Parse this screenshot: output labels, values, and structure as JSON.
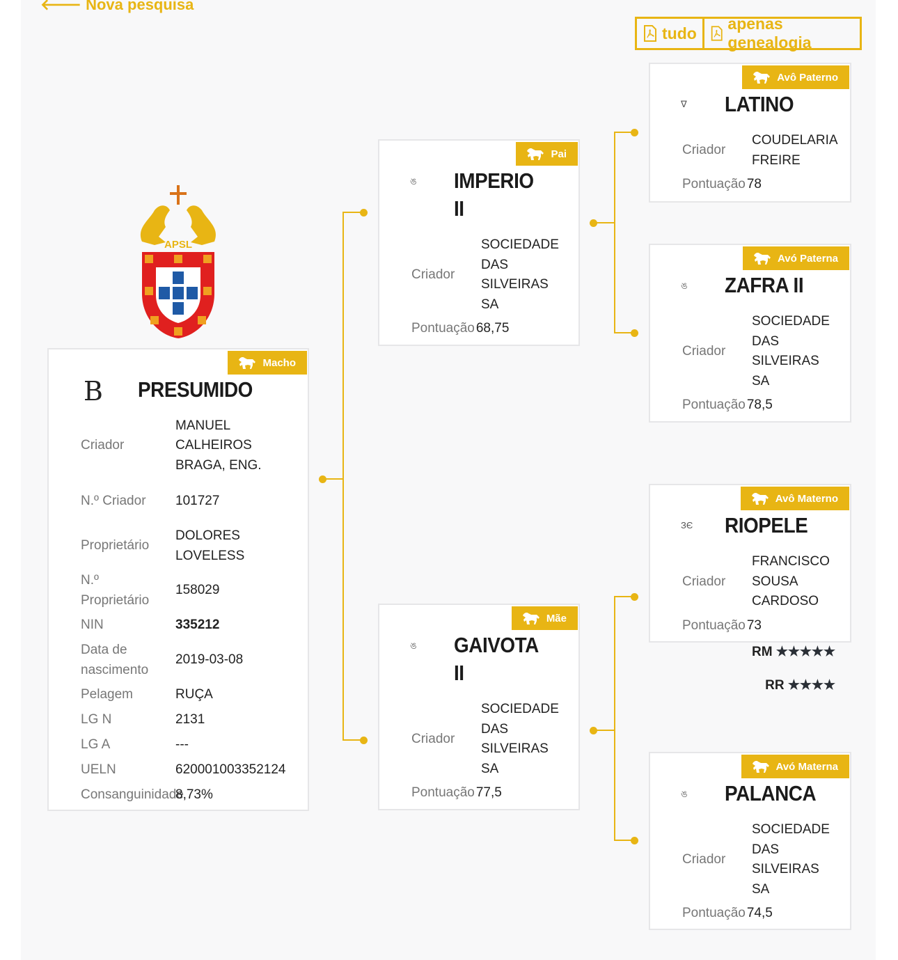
{
  "nav": {
    "back_label": "Nova pesquisa"
  },
  "pdf": {
    "all_label": "tudo",
    "genealogy_label": "apenas genealogia"
  },
  "logo": {
    "text": "APSL"
  },
  "colors": {
    "accent": "#e8b514",
    "background": "#f8f8f9"
  },
  "main": {
    "badge": "Macho",
    "brand_mark": "B",
    "name": "PRESUMIDO",
    "rows": [
      {
        "label": "Criador",
        "value": "MANUEL CALHEIROS BRAGA, ENG."
      },
      {
        "label": "N.º Criador",
        "value": "101727"
      },
      {
        "label": "Proprietário",
        "value": "DOLORES LOVELESS"
      },
      {
        "label": "N.º Proprietário",
        "value": "158029"
      },
      {
        "label": "NIN",
        "value": "335212"
      },
      {
        "label": "Data de nascimento",
        "value": "2019-03-08"
      },
      {
        "label": "Pelagem",
        "value": "RUÇA"
      },
      {
        "label": "LG N",
        "value": "2131"
      },
      {
        "label": "LG A",
        "value": "---"
      },
      {
        "label": "UELN",
        "value": "620001003352124"
      },
      {
        "label": "Consanguinidade",
        "value": "8,73%"
      }
    ]
  },
  "ancestors": [
    {
      "id": "pai",
      "badge": "Pai",
      "mark": "ঙ",
      "name": "IMPERIO II",
      "breeder_label": "Criador",
      "breeder": "SOCIEDADE DAS SILVEIRAS SA",
      "score_label": "Pontuação",
      "score": "68,75"
    },
    {
      "id": "mae",
      "badge": "Mãe",
      "mark": "ঙ",
      "name": "GAIVOTA II",
      "breeder_label": "Criador",
      "breeder": "SOCIEDADE DAS SILVEIRAS SA",
      "score_label": "Pontuação",
      "score": "77,5"
    },
    {
      "id": "avo-paterno",
      "badge": "Avô Paterno",
      "mark": "∇",
      "name": "LATINO",
      "breeder_label": "Criador",
      "breeder": "COUDELARIA FREIRE",
      "score_label": "Pontuação",
      "score": "78"
    },
    {
      "id": "avo-paterna",
      "badge": "Avó Paterna",
      "mark": "ঙ",
      "name": "ZAFRA II",
      "breeder_label": "Criador",
      "breeder": "SOCIEDADE DAS SILVEIRAS SA",
      "score_label": "Pontuação",
      "score": "78,5"
    },
    {
      "id": "avo-materno",
      "badge": "Avô Materno",
      "mark": "ЗЄ",
      "name": "RIOPELE",
      "breeder_label": "Criador",
      "breeder": "FRANCISCO SOUSA CARDOSO",
      "score_label": "Pontuação",
      "score": "73"
    },
    {
      "id": "avo-materna",
      "badge": "Avó Materna",
      "mark": "ঙ",
      "name": "PALANCA",
      "breeder_label": "Criador",
      "breeder": "SOCIEDADE DAS SILVEIRAS SA",
      "score_label": "Pontuação",
      "score": "74,5"
    }
  ],
  "ratings": [
    {
      "label": "RM",
      "stars": 5,
      "stars_text": "★★★★★"
    },
    {
      "label": "RR",
      "stars": 4,
      "stars_text": "★★★★"
    }
  ]
}
